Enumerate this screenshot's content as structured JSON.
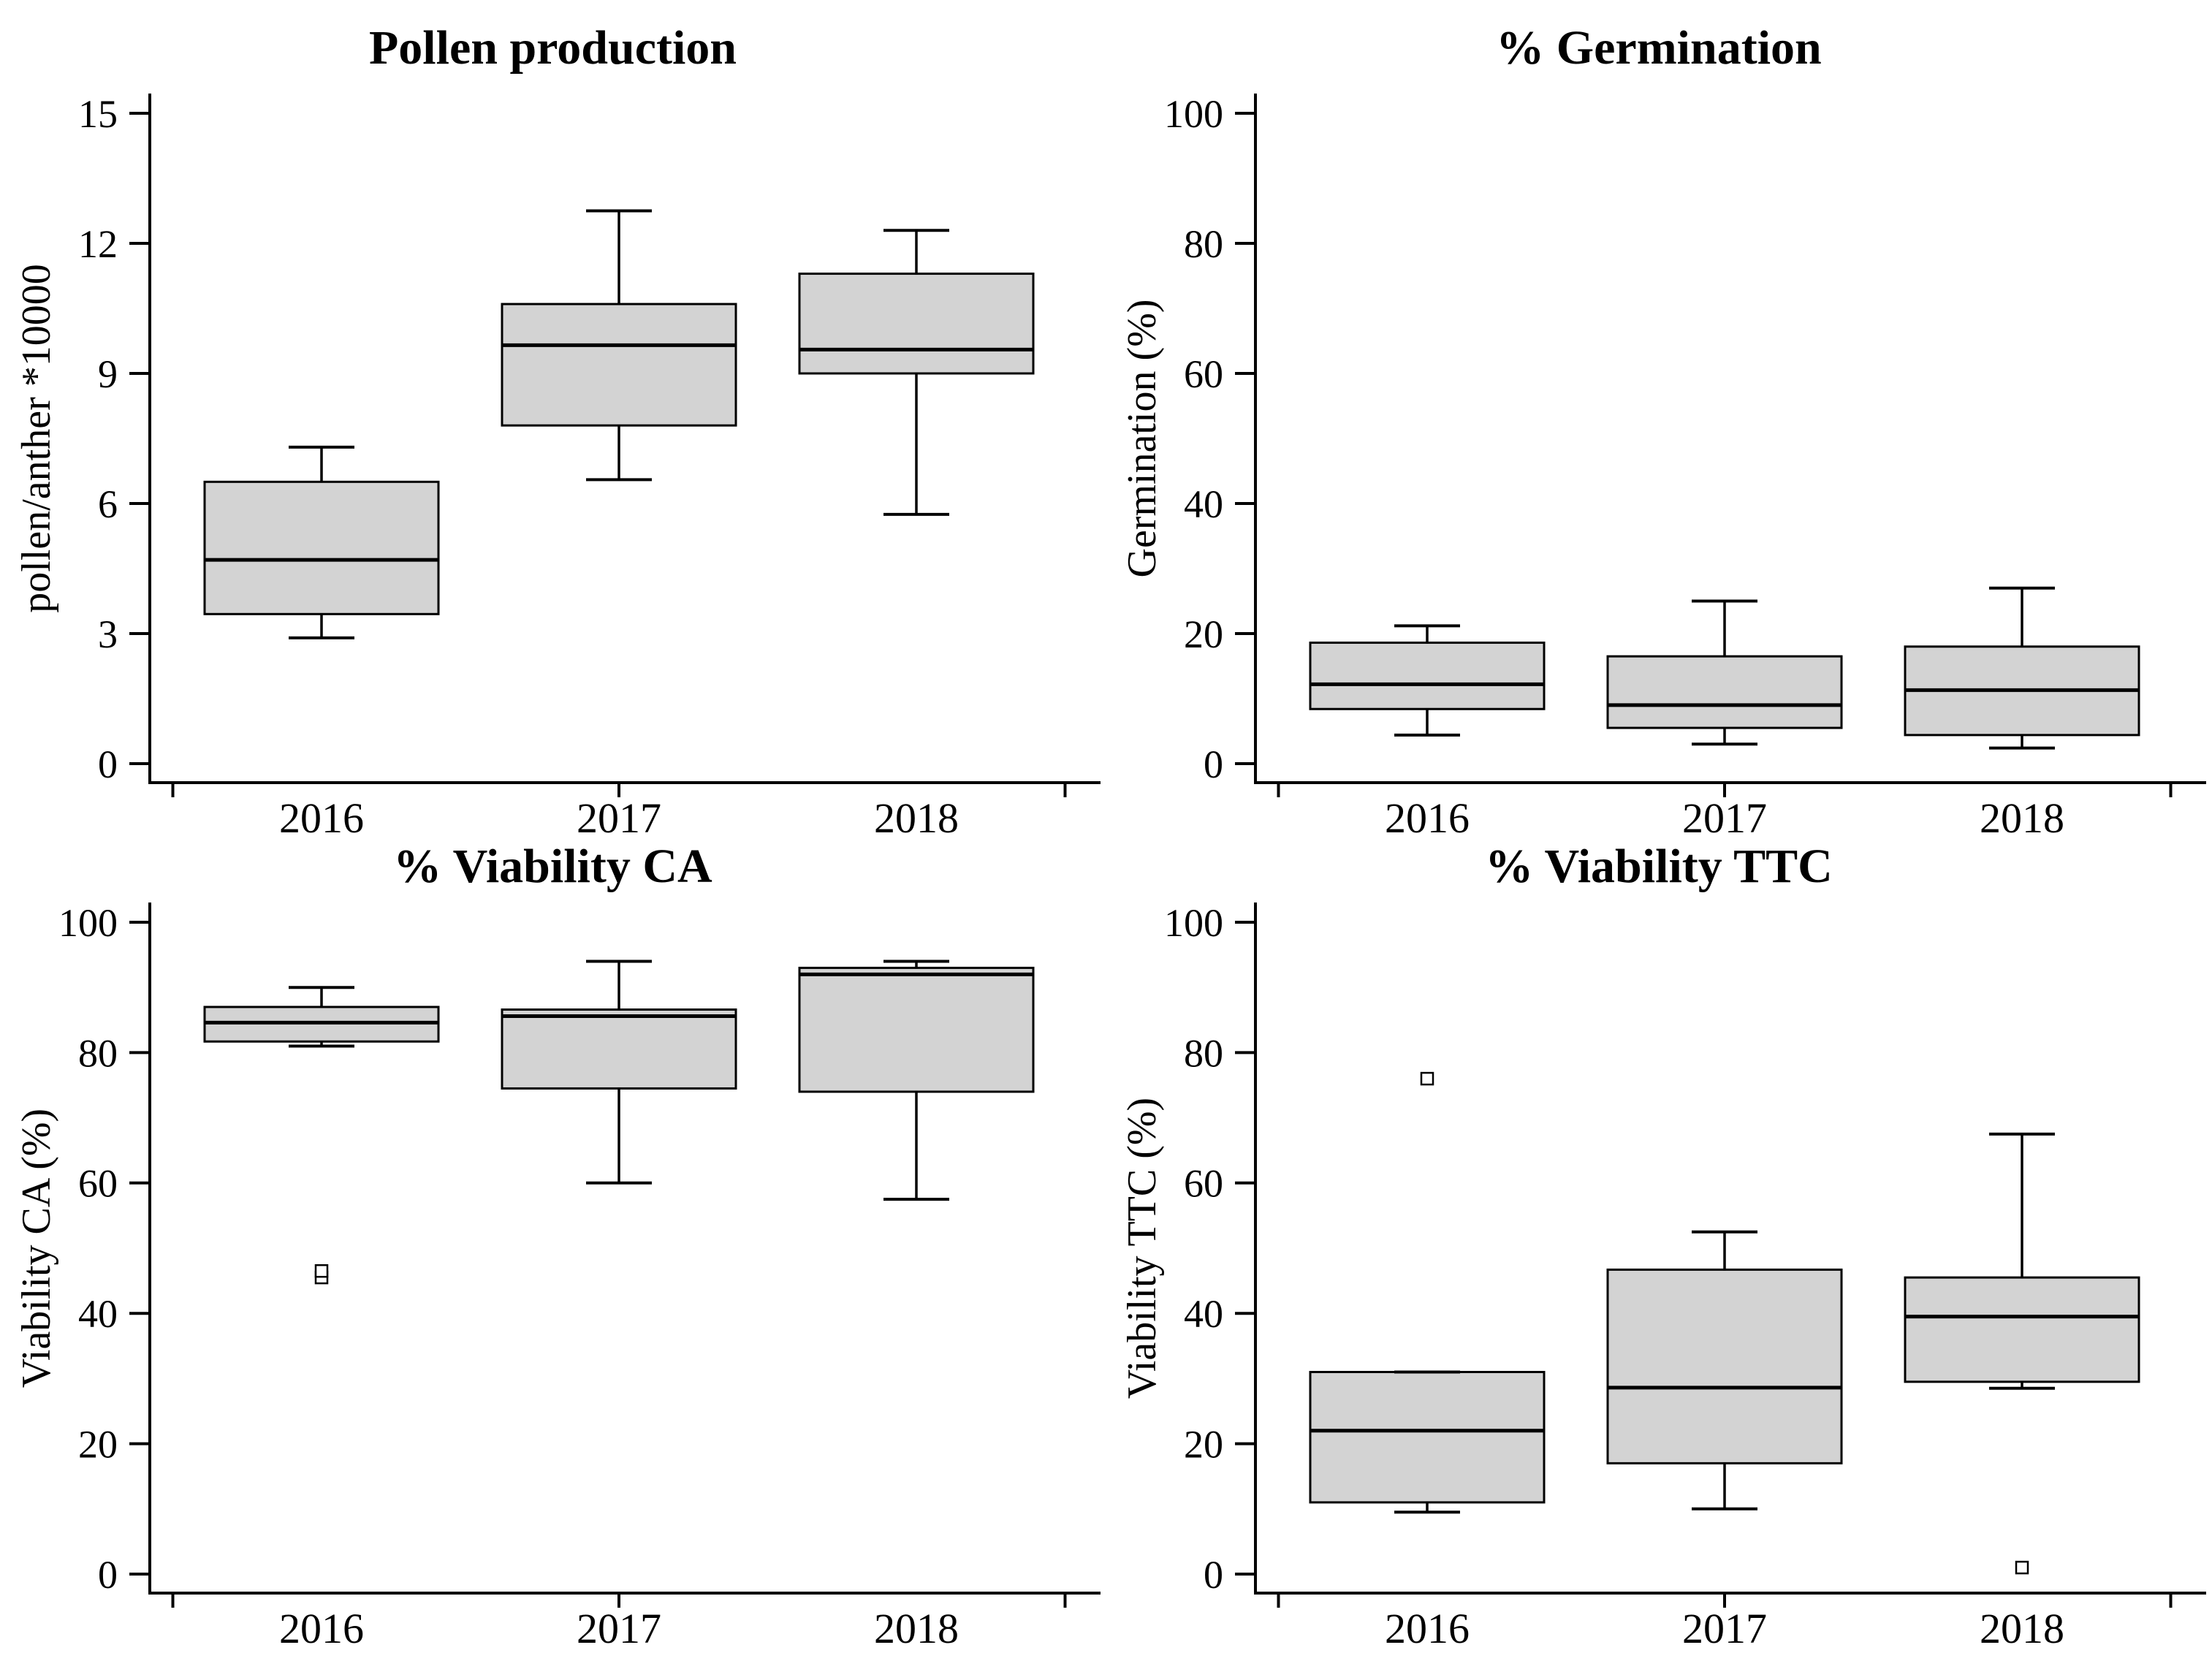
{
  "figure": {
    "kind": "boxplot-grid",
    "rows": 2,
    "cols": 2
  },
  "colors": {
    "box_fill": "#d3d3d3",
    "line": "#000000",
    "background": "#ffffff",
    "outlier_fill": "#ffffff"
  },
  "chart_data": [
    {
      "type": "box",
      "title": "Pollen production",
      "xlabel": "",
      "ylabel": "pollen/anther *10000",
      "ylim": [
        0,
        15
      ],
      "yticks": [
        0,
        3,
        6,
        9,
        12,
        15
      ],
      "grid": false,
      "categories": [
        "2016",
        "2017",
        "2018"
      ],
      "boxes": [
        {
          "category": "2016",
          "min": 2.9,
          "q1": 3.45,
          "median": 4.7,
          "q3": 6.5,
          "max": 7.3,
          "outliers": []
        },
        {
          "category": "2017",
          "min": 6.55,
          "q1": 7.8,
          "median": 9.65,
          "q3": 10.6,
          "max": 12.75,
          "outliers": []
        },
        {
          "category": "2018",
          "min": 5.75,
          "q1": 9.0,
          "median": 9.55,
          "q3": 11.3,
          "max": 12.3,
          "outliers": []
        }
      ]
    },
    {
      "type": "box",
      "title": "% Germination",
      "xlabel": "",
      "ylabel": "Germination (%)",
      "ylim": [
        0,
        100
      ],
      "yticks": [
        0,
        20,
        40,
        60,
        80,
        100
      ],
      "grid": false,
      "categories": [
        "2016",
        "2017",
        "2018"
      ],
      "boxes": [
        {
          "category": "2016",
          "min": 4.4,
          "q1": 8.4,
          "median": 12.2,
          "q3": 18.6,
          "max": 21.2,
          "outliers": []
        },
        {
          "category": "2017",
          "min": 3.0,
          "q1": 5.5,
          "median": 9.0,
          "q3": 16.5,
          "max": 25.0,
          "outliers": []
        },
        {
          "category": "2018",
          "min": 2.4,
          "q1": 4.4,
          "median": 11.3,
          "q3": 18.0,
          "max": 27.0,
          "outliers": []
        }
      ]
    },
    {
      "type": "box",
      "title": "% Viability CA",
      "xlabel": "",
      "ylabel": "Viability CA (%)",
      "ylim": [
        0,
        100
      ],
      "yticks": [
        0,
        20,
        40,
        60,
        80,
        100
      ],
      "grid": false,
      "categories": [
        "2016",
        "2017",
        "2018"
      ],
      "boxes": [
        {
          "category": "2016",
          "min": 81.0,
          "q1": 81.7,
          "median": 84.6,
          "q3": 87.0,
          "max": 90.0,
          "outliers": [
            45.5,
            46.5
          ]
        },
        {
          "category": "2017",
          "min": 60.0,
          "q1": 74.5,
          "median": 85.6,
          "q3": 86.6,
          "max": 94.0,
          "outliers": []
        },
        {
          "category": "2018",
          "min": 57.5,
          "q1": 74.0,
          "median": 92.0,
          "q3": 93.0,
          "max": 94.0,
          "outliers": []
        }
      ]
    },
    {
      "type": "box",
      "title": "% Viability TTC",
      "xlabel": "",
      "ylabel": "Viability TTC (%)",
      "ylim": [
        0,
        100
      ],
      "yticks": [
        0,
        20,
        40,
        60,
        80,
        100
      ],
      "grid": false,
      "categories": [
        "2016",
        "2017",
        "2018"
      ],
      "boxes": [
        {
          "category": "2016",
          "min": 9.5,
          "q1": 11.0,
          "median": 22.0,
          "q3": 31.0,
          "max": 31.0,
          "outliers": [
            76
          ]
        },
        {
          "category": "2017",
          "min": 10.0,
          "q1": 17.0,
          "median": 28.6,
          "q3": 46.7,
          "max": 52.5,
          "outliers": []
        },
        {
          "category": "2018",
          "min": 28.5,
          "q1": 29.5,
          "median": 39.5,
          "q3": 45.5,
          "max": 67.5,
          "outliers": [
            1
          ]
        }
      ]
    }
  ]
}
